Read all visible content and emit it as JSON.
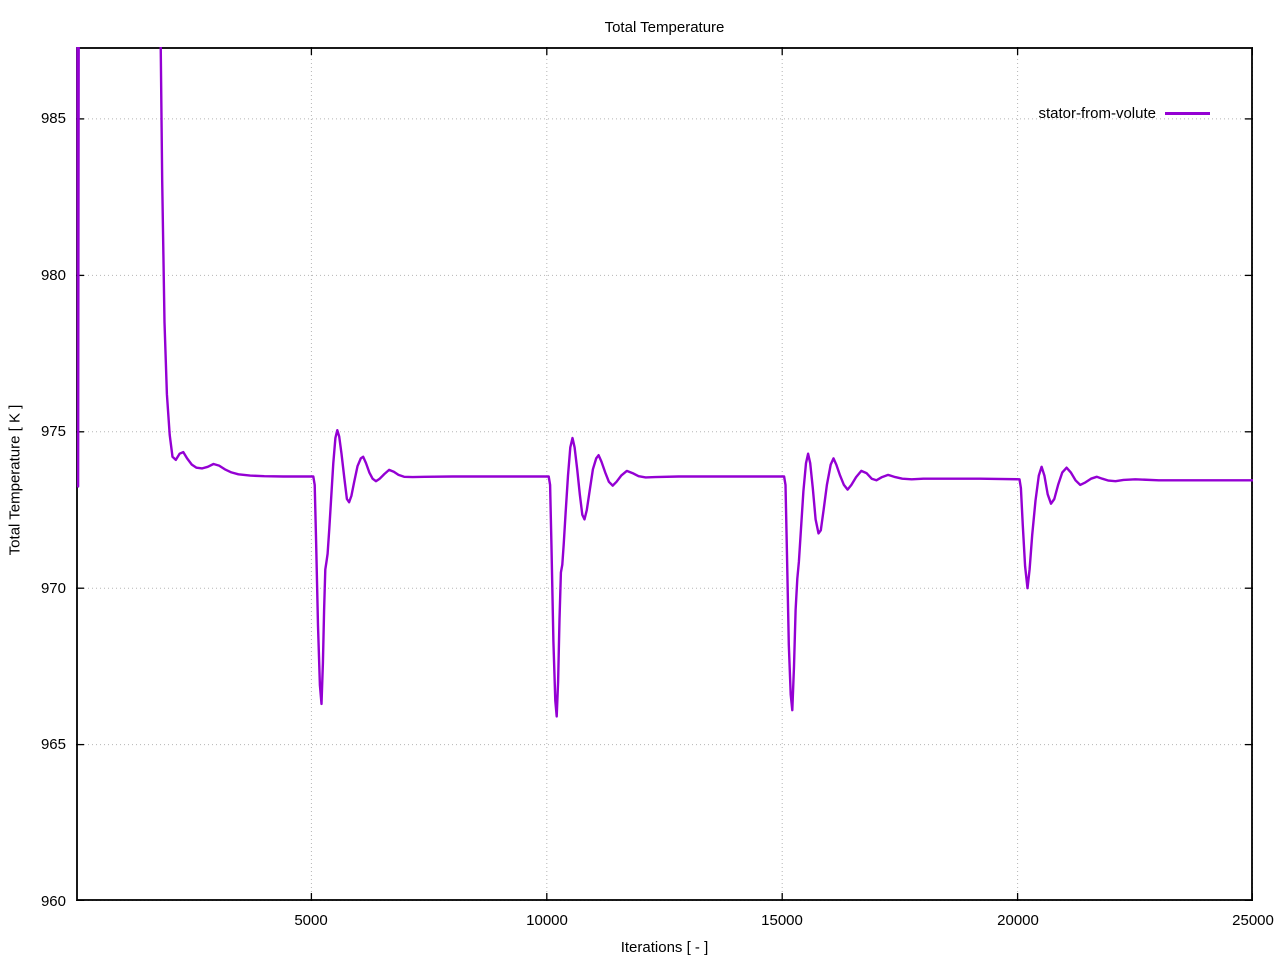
{
  "page": {
    "background": "#ffffff",
    "text_color": "#000000"
  },
  "styles": {
    "grid_color": "#b5b5b5",
    "axis_color": "#000000",
    "tick_length": 8
  },
  "chart_data": {
    "type": "line",
    "title": "Total Temperature",
    "xlabel": "Iterations [ - ]",
    "ylabel": "Total Temperature [ K ]",
    "xlim": [
      0,
      25000
    ],
    "ylim": [
      960,
      987.3
    ],
    "xticks": [
      5000,
      10000,
      15000,
      20000,
      25000
    ],
    "yticks": [
      960,
      965,
      970,
      975,
      980,
      985
    ],
    "grid": true,
    "legend_position": "inside-top-right",
    "series": [
      {
        "name": "stator-from-volute",
        "color": "#9400d3",
        "points": [
          [
            30,
            990
          ],
          [
            45,
            973.25
          ],
          [
            60,
            990
          ],
          [
            1780,
            990
          ],
          [
            1830,
            983
          ],
          [
            1880,
            978.5
          ],
          [
            1930,
            976.2
          ],
          [
            1990,
            974.9
          ],
          [
            2050,
            974.2
          ],
          [
            2120,
            974.1
          ],
          [
            2200,
            974.3
          ],
          [
            2280,
            974.35
          ],
          [
            2360,
            974.15
          ],
          [
            2460,
            973.95
          ],
          [
            2560,
            973.85
          ],
          [
            2680,
            973.83
          ],
          [
            2800,
            973.88
          ],
          [
            2920,
            973.97
          ],
          [
            3040,
            973.92
          ],
          [
            3160,
            973.8
          ],
          [
            3300,
            973.7
          ],
          [
            3450,
            973.64
          ],
          [
            3700,
            973.6
          ],
          [
            4000,
            973.58
          ],
          [
            4400,
            973.57
          ],
          [
            4800,
            973.57
          ],
          [
            5040,
            973.57
          ],
          [
            5070,
            973.3
          ],
          [
            5100,
            971.5
          ],
          [
            5140,
            968.8
          ],
          [
            5180,
            966.9
          ],
          [
            5215,
            966.3
          ],
          [
            5245,
            967.6
          ],
          [
            5270,
            969.3
          ],
          [
            5295,
            970.6
          ],
          [
            5320,
            970.85
          ],
          [
            5345,
            971.1
          ],
          [
            5380,
            971.9
          ],
          [
            5420,
            972.9
          ],
          [
            5465,
            974.0
          ],
          [
            5510,
            974.8
          ],
          [
            5550,
            975.05
          ],
          [
            5590,
            974.85
          ],
          [
            5640,
            974.3
          ],
          [
            5700,
            973.5
          ],
          [
            5755,
            972.85
          ],
          [
            5800,
            972.75
          ],
          [
            5850,
            972.95
          ],
          [
            5910,
            973.4
          ],
          [
            5980,
            973.9
          ],
          [
            6050,
            974.15
          ],
          [
            6100,
            974.2
          ],
          [
            6160,
            974.0
          ],
          [
            6230,
            973.7
          ],
          [
            6300,
            973.5
          ],
          [
            6370,
            973.42
          ],
          [
            6450,
            973.5
          ],
          [
            6550,
            973.65
          ],
          [
            6650,
            973.78
          ],
          [
            6750,
            973.72
          ],
          [
            6850,
            973.62
          ],
          [
            6970,
            973.56
          ],
          [
            7150,
            973.55
          ],
          [
            7400,
            973.56
          ],
          [
            8000,
            973.57
          ],
          [
            9000,
            973.57
          ],
          [
            10040,
            973.57
          ],
          [
            10070,
            973.3
          ],
          [
            10100,
            971.3
          ],
          [
            10140,
            968.3
          ],
          [
            10180,
            966.4
          ],
          [
            10210,
            965.9
          ],
          [
            10240,
            967.0
          ],
          [
            10270,
            969.0
          ],
          [
            10300,
            970.5
          ],
          [
            10330,
            970.75
          ],
          [
            10360,
            971.4
          ],
          [
            10400,
            972.4
          ],
          [
            10450,
            973.6
          ],
          [
            10500,
            974.5
          ],
          [
            10545,
            974.8
          ],
          [
            10590,
            974.5
          ],
          [
            10645,
            973.8
          ],
          [
            10700,
            973.0
          ],
          [
            10755,
            972.35
          ],
          [
            10800,
            972.2
          ],
          [
            10850,
            972.5
          ],
          [
            10910,
            973.1
          ],
          [
            10980,
            973.8
          ],
          [
            11050,
            974.15
          ],
          [
            11100,
            974.25
          ],
          [
            11160,
            974.05
          ],
          [
            11240,
            973.7
          ],
          [
            11320,
            973.4
          ],
          [
            11400,
            973.28
          ],
          [
            11480,
            973.4
          ],
          [
            11580,
            973.6
          ],
          [
            11700,
            973.75
          ],
          [
            11820,
            973.68
          ],
          [
            11950,
            973.58
          ],
          [
            12100,
            973.54
          ],
          [
            12300,
            973.55
          ],
          [
            12800,
            973.57
          ],
          [
            13500,
            973.57
          ],
          [
            14500,
            973.57
          ],
          [
            15040,
            973.57
          ],
          [
            15070,
            973.3
          ],
          [
            15100,
            971.2
          ],
          [
            15140,
            968.2
          ],
          [
            15180,
            966.6
          ],
          [
            15215,
            966.1
          ],
          [
            15250,
            967.5
          ],
          [
            15285,
            969.3
          ],
          [
            15320,
            970.3
          ],
          [
            15355,
            970.85
          ],
          [
            15400,
            971.9
          ],
          [
            15450,
            973.1
          ],
          [
            15505,
            974.0
          ],
          [
            15550,
            974.3
          ],
          [
            15595,
            974.0
          ],
          [
            15650,
            973.2
          ],
          [
            15710,
            972.2
          ],
          [
            15770,
            971.75
          ],
          [
            15820,
            971.85
          ],
          [
            15880,
            972.5
          ],
          [
            15950,
            973.3
          ],
          [
            16030,
            973.95
          ],
          [
            16090,
            974.15
          ],
          [
            16150,
            973.95
          ],
          [
            16230,
            973.6
          ],
          [
            16310,
            973.3
          ],
          [
            16390,
            973.15
          ],
          [
            16470,
            973.3
          ],
          [
            16570,
            973.55
          ],
          [
            16680,
            973.75
          ],
          [
            16790,
            973.68
          ],
          [
            16900,
            973.5
          ],
          [
            17000,
            973.45
          ],
          [
            17120,
            973.55
          ],
          [
            17250,
            973.62
          ],
          [
            17400,
            973.55
          ],
          [
            17550,
            973.5
          ],
          [
            17750,
            973.48
          ],
          [
            18000,
            973.5
          ],
          [
            18500,
            973.5
          ],
          [
            19200,
            973.5
          ],
          [
            20040,
            973.48
          ],
          [
            20070,
            973.2
          ],
          [
            20110,
            972.0
          ],
          [
            20160,
            970.7
          ],
          [
            20210,
            970.0
          ],
          [
            20255,
            970.6
          ],
          [
            20310,
            971.7
          ],
          [
            20380,
            972.8
          ],
          [
            20450,
            973.6
          ],
          [
            20510,
            973.88
          ],
          [
            20570,
            973.6
          ],
          [
            20640,
            973.0
          ],
          [
            20710,
            972.7
          ],
          [
            20780,
            972.85
          ],
          [
            20860,
            973.3
          ],
          [
            20950,
            973.7
          ],
          [
            21040,
            973.85
          ],
          [
            21130,
            973.7
          ],
          [
            21230,
            973.45
          ],
          [
            21330,
            973.3
          ],
          [
            21440,
            973.38
          ],
          [
            21560,
            973.5
          ],
          [
            21680,
            973.56
          ],
          [
            21800,
            973.5
          ],
          [
            21930,
            973.44
          ],
          [
            22080,
            973.42
          ],
          [
            22250,
            973.46
          ],
          [
            22500,
            973.48
          ],
          [
            23000,
            973.45
          ],
          [
            23800,
            973.45
          ],
          [
            25000,
            973.45
          ]
        ]
      }
    ]
  }
}
